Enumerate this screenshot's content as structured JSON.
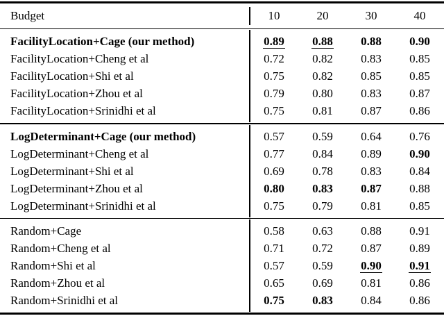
{
  "table": {
    "header": {
      "label": "Budget",
      "columns": [
        "10",
        "20",
        "30",
        "40"
      ]
    },
    "groups": [
      {
        "rows": [
          {
            "label": "FacilityLocation+Cage (our method)",
            "b": true,
            "cells": [
              {
                "v": "0.89",
                "b": true,
                "u": true
              },
              {
                "v": "0.88",
                "b": true,
                "u": true
              },
              {
                "v": "0.88",
                "b": true
              },
              {
                "v": "0.90",
                "b": true
              }
            ]
          },
          {
            "label": "FacilityLocation+Cheng et al",
            "cells": [
              {
                "v": "0.72"
              },
              {
                "v": "0.82"
              },
              {
                "v": "0.83"
              },
              {
                "v": "0.85"
              }
            ]
          },
          {
            "label": "FacilityLocation+Shi et al",
            "cells": [
              {
                "v": "0.75"
              },
              {
                "v": "0.82"
              },
              {
                "v": "0.85"
              },
              {
                "v": "0.85"
              }
            ]
          },
          {
            "label": "FacilityLocation+Zhou et al",
            "cells": [
              {
                "v": "0.79"
              },
              {
                "v": "0.80"
              },
              {
                "v": "0.83"
              },
              {
                "v": "0.87"
              }
            ]
          },
          {
            "label": "FacilityLocation+Srinidhi et al",
            "cells": [
              {
                "v": "0.75"
              },
              {
                "v": "0.81"
              },
              {
                "v": "0.87"
              },
              {
                "v": "0.86"
              }
            ]
          }
        ]
      },
      {
        "rows": [
          {
            "label": "LogDeterminant+Cage (our method)",
            "b": true,
            "cells": [
              {
                "v": "0.57"
              },
              {
                "v": "0.59"
              },
              {
                "v": "0.64"
              },
              {
                "v": "0.76"
              }
            ]
          },
          {
            "label": "LogDeterminant+Cheng et al",
            "cells": [
              {
                "v": "0.77"
              },
              {
                "v": "0.84"
              },
              {
                "v": "0.89"
              },
              {
                "v": "0.90",
                "b": true
              }
            ]
          },
          {
            "label": "LogDeterminant+Shi et al",
            "cells": [
              {
                "v": "0.69"
              },
              {
                "v": "0.78"
              },
              {
                "v": "0.83"
              },
              {
                "v": "0.84"
              }
            ]
          },
          {
            "label": "LogDeterminant+Zhou et al",
            "cells": [
              {
                "v": "0.80",
                "b": true
              },
              {
                "v": "0.83",
                "b": true
              },
              {
                "v": "0.87",
                "b": true
              },
              {
                "v": "0.88"
              }
            ]
          },
          {
            "label": "LogDeterminant+Srinidhi et al",
            "cells": [
              {
                "v": "0.75"
              },
              {
                "v": "0.79"
              },
              {
                "v": "0.81"
              },
              {
                "v": "0.85"
              }
            ]
          }
        ]
      },
      {
        "rows": [
          {
            "label": "Random+Cage",
            "cells": [
              {
                "v": "0.58"
              },
              {
                "v": "0.63"
              },
              {
                "v": "0.88"
              },
              {
                "v": "0.91"
              }
            ]
          },
          {
            "label": "Random+Cheng et al",
            "cells": [
              {
                "v": "0.71"
              },
              {
                "v": "0.72"
              },
              {
                "v": "0.87"
              },
              {
                "v": "0.89"
              }
            ]
          },
          {
            "label": "Random+Shi et al",
            "cells": [
              {
                "v": "0.57"
              },
              {
                "v": "0.59"
              },
              {
                "v": "0.90",
                "b": true,
                "u": true
              },
              {
                "v": "0.91",
                "b": true,
                "u": true
              }
            ]
          },
          {
            "label": "Random+Zhou et al",
            "cells": [
              {
                "v": "0.65"
              },
              {
                "v": "0.69"
              },
              {
                "v": "0.81"
              },
              {
                "v": "0.86"
              }
            ]
          },
          {
            "label": "Random+Srinidhi et al",
            "cells": [
              {
                "v": "0.75",
                "b": true
              },
              {
                "v": "0.83",
                "b": true
              },
              {
                "v": "0.84"
              },
              {
                "v": "0.86"
              }
            ]
          }
        ]
      }
    ]
  }
}
